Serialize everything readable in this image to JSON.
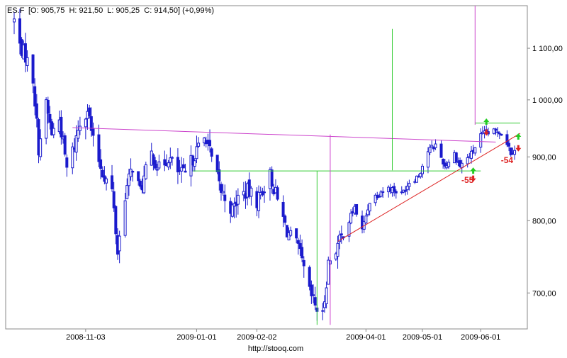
{
  "header": {
    "symbol": "ES.F",
    "ohlc": "[O: 905,75  H: 921,50  L: 905,25  C: 914,50] (+0,99%)"
  },
  "footer": {
    "source": "http://stooq.com"
  },
  "chart_data": {
    "type": "candlestick",
    "symbol": "ES.F",
    "y_scale": "log",
    "ylim": [
      655,
      1190
    ],
    "x_range": [
      "2008-09-26",
      "2009-06-22"
    ],
    "grid": false,
    "y_ticks": [
      {
        "value": 700,
        "label": "700,00"
      },
      {
        "value": 800,
        "label": "800,00"
      },
      {
        "value": 900,
        "label": "900,00"
      },
      {
        "value": 1000,
        "label": "1 000,00"
      },
      {
        "value": 1100,
        "label": "1 100,00"
      }
    ],
    "x_ticks": [
      {
        "date": "2008-11-03",
        "label": "2008-11-03"
      },
      {
        "date": "2009-01-01",
        "label": "2009-01-01"
      },
      {
        "date": "2009-02-02",
        "label": "2009-02-02"
      },
      {
        "date": "2009-04-01",
        "label": "2009-04-01"
      },
      {
        "date": "2009-05-01",
        "label": "2009-05-01"
      },
      {
        "date": "2009-06-01",
        "label": "2009-06-01"
      }
    ],
    "price_anchors": [
      [
        "2008-09-26",
        1158
      ],
      [
        "2008-09-29",
        1105
      ],
      [
        "2008-10-02",
        1085
      ],
      [
        "2008-10-06",
        1040
      ],
      [
        "2008-10-09",
        915
      ],
      [
        "2008-10-13",
        990
      ],
      [
        "2008-10-16",
        940
      ],
      [
        "2008-10-20",
        965
      ],
      [
        "2008-10-24",
        880
      ],
      [
        "2008-10-28",
        920
      ],
      [
        "2008-10-31",
        960
      ],
      [
        "2008-11-04",
        985
      ],
      [
        "2008-11-07",
        925
      ],
      [
        "2008-11-12",
        875
      ],
      [
        "2008-11-17",
        845
      ],
      [
        "2008-11-20",
        755
      ],
      [
        "2008-11-24",
        840
      ],
      [
        "2008-11-28",
        885
      ],
      [
        "2008-12-02",
        845
      ],
      [
        "2008-12-08",
        905
      ],
      [
        "2008-12-12",
        880
      ],
      [
        "2008-12-17",
        900
      ],
      [
        "2008-12-22",
        875
      ],
      [
        "2008-12-26",
        870
      ],
      [
        "2008-12-31",
        905
      ],
      [
        "2009-01-06",
        935
      ],
      [
        "2009-01-09",
        895
      ],
      [
        "2009-01-14",
        845
      ],
      [
        "2009-01-20",
        815
      ],
      [
        "2009-01-23",
        835
      ],
      [
        "2009-01-28",
        845
      ],
      [
        "2009-02-02",
        830
      ],
      [
        "2009-02-09",
        870
      ],
      [
        "2009-02-13",
        830
      ],
      [
        "2009-02-18",
        785
      ],
      [
        "2009-02-24",
        760
      ],
      [
        "2009-03-02",
        700
      ],
      [
        "2009-03-06",
        680
      ],
      [
        "2009-03-09",
        670
      ],
      [
        "2009-03-12",
        740
      ],
      [
        "2009-03-17",
        765
      ],
      [
        "2009-03-20",
        780
      ],
      [
        "2009-03-26",
        820
      ],
      [
        "2009-03-30",
        785
      ],
      [
        "2009-04-03",
        830
      ],
      [
        "2009-04-09",
        845
      ],
      [
        "2009-04-14",
        850
      ],
      [
        "2009-04-20",
        840
      ],
      [
        "2009-04-24",
        860
      ],
      [
        "2009-04-29",
        870
      ],
      [
        "2009-05-04",
        910
      ],
      [
        "2009-05-08",
        920
      ],
      [
        "2009-05-13",
        885
      ],
      [
        "2009-05-18",
        905
      ],
      [
        "2009-05-21",
        885
      ],
      [
        "2009-05-27",
        905
      ],
      [
        "2009-06-01",
        935
      ],
      [
        "2009-06-04",
        940
      ],
      [
        "2009-06-08",
        942
      ],
      [
        "2009-06-11",
        945
      ],
      [
        "2009-06-15",
        925
      ],
      [
        "2009-06-17",
        908
      ],
      [
        "2009-06-19",
        914
      ]
    ],
    "annotations": {
      "lines": [
        {
          "name": "resistance-line",
          "color": "#cc44cc",
          "points": [
            [
              "2008-10-27",
              950
            ],
            [
              "2009-06-09",
              925
            ]
          ]
        },
        {
          "name": "neckline",
          "color": "#33cc33",
          "points": [
            [
              "2008-12-30",
              877
            ],
            [
              "2009-06-01",
              877
            ]
          ]
        },
        {
          "name": "uptrend-line",
          "color": "#dd2222",
          "points": [
            [
              "2009-03-17",
              770
            ],
            [
              "2009-06-22",
              940
            ]
          ]
        },
        {
          "name": "top-line",
          "color": "#33cc33",
          "points": [
            [
              "2009-05-29",
              958
            ],
            [
              "2009-06-22",
              958
            ]
          ]
        },
        {
          "name": "target-line-green",
          "color": "#33cc33",
          "points": [
            [
              "2009-04-15",
              878
            ],
            [
              "2009-04-15",
              1140
            ]
          ]
        },
        {
          "name": "target-line-magenta",
          "color": "#cc44cc",
          "points": [
            [
              "2009-05-29",
              955
            ],
            [
              "2009-05-29",
              1190
            ]
          ]
        },
        {
          "name": "bottom-line-green",
          "color": "#33cc33",
          "points": [
            [
              "2009-03-06",
              877
            ],
            [
              "2009-03-06",
              660
            ]
          ]
        },
        {
          "name": "bottom-line-magenta",
          "color": "#cc44cc",
          "points": [
            [
              "2009-03-13",
              938
            ],
            [
              "2009-03-13",
              660
            ]
          ]
        }
      ],
      "labels": [
        {
          "text": "-55",
          "color": "#dd2222",
          "at": [
            "2009-05-25",
            858
          ]
        },
        {
          "text": "-54",
          "color": "#dd2222",
          "at": [
            "2009-06-15",
            890
          ]
        }
      ],
      "arrows": [
        {
          "dir": "up",
          "color": "#22cc22",
          "at": [
            "2009-05-28",
            877
          ]
        },
        {
          "dir": "down",
          "color": "#dd2222",
          "at": [
            "2009-05-28",
            865
          ]
        },
        {
          "dir": "up",
          "color": "#22cc22",
          "at": [
            "2009-06-04",
            960
          ]
        },
        {
          "dir": "down",
          "color": "#dd2222",
          "at": [
            "2009-06-04",
            942
          ]
        },
        {
          "dir": "up",
          "color": "#22cc22",
          "at": [
            "2009-06-21",
            934
          ]
        },
        {
          "dir": "down",
          "color": "#dd2222",
          "at": [
            "2009-06-21",
            915
          ]
        }
      ]
    },
    "colors": {
      "candle": "#1a1acc",
      "axis": "#888888",
      "text": "#000000"
    }
  }
}
